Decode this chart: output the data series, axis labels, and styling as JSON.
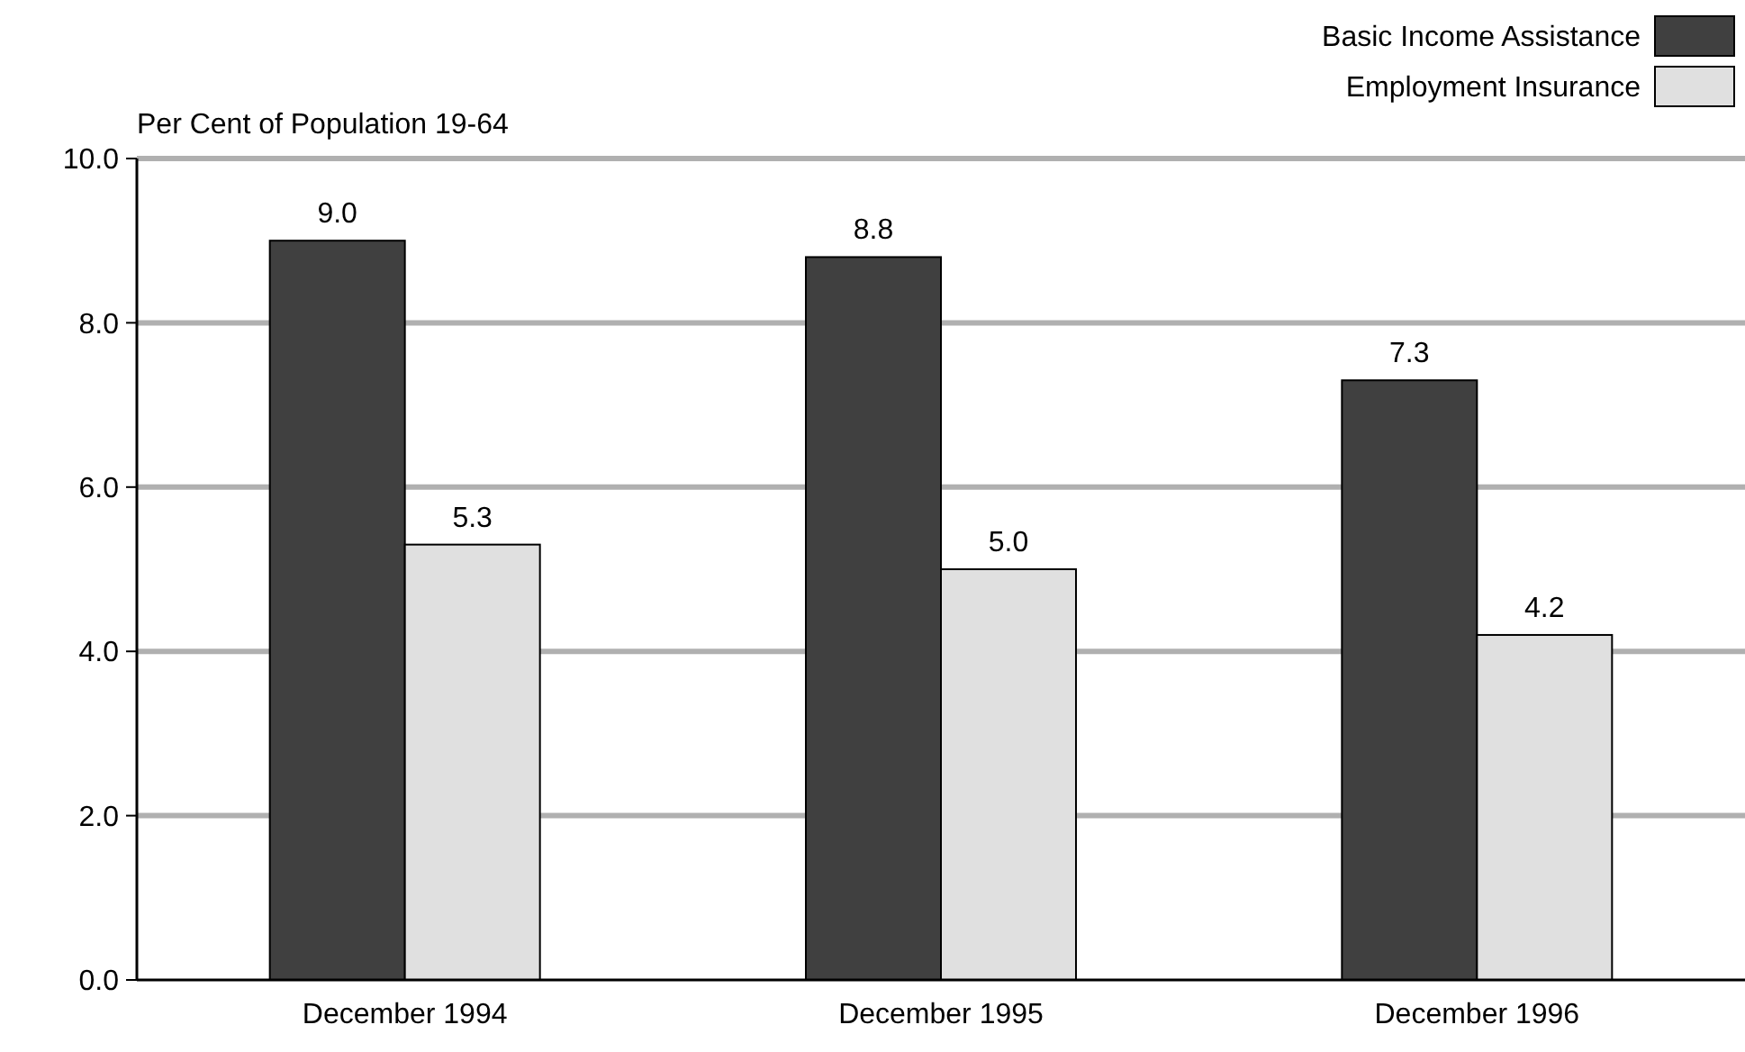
{
  "chart_data": {
    "type": "bar",
    "ylabel": "Per Cent of Population 19-64",
    "categories": [
      "December 1994",
      "December 1995",
      "December 1996"
    ],
    "series": [
      {
        "name": "Basic Income Assistance",
        "color": "#404040",
        "values": [
          9.0,
          8.8,
          7.3
        ],
        "value_labels": [
          "9.0",
          "8.8",
          "7.3"
        ]
      },
      {
        "name": "Employment Insurance",
        "color": "#e0e0e0",
        "values": [
          5.3,
          5.0,
          4.2
        ],
        "value_labels": [
          "5.3",
          "5.0",
          "4.2"
        ]
      }
    ],
    "ylim": [
      0,
      10
    ],
    "yticks": [
      {
        "value": 0,
        "label": "0.0"
      },
      {
        "value": 2,
        "label": "2.0"
      },
      {
        "value": 4,
        "label": "4.0"
      },
      {
        "value": 6,
        "label": "6.0"
      },
      {
        "value": 8,
        "label": "8.0"
      },
      {
        "value": 10,
        "label": "10.0"
      }
    ],
    "grid": "y",
    "legend": "top right"
  }
}
